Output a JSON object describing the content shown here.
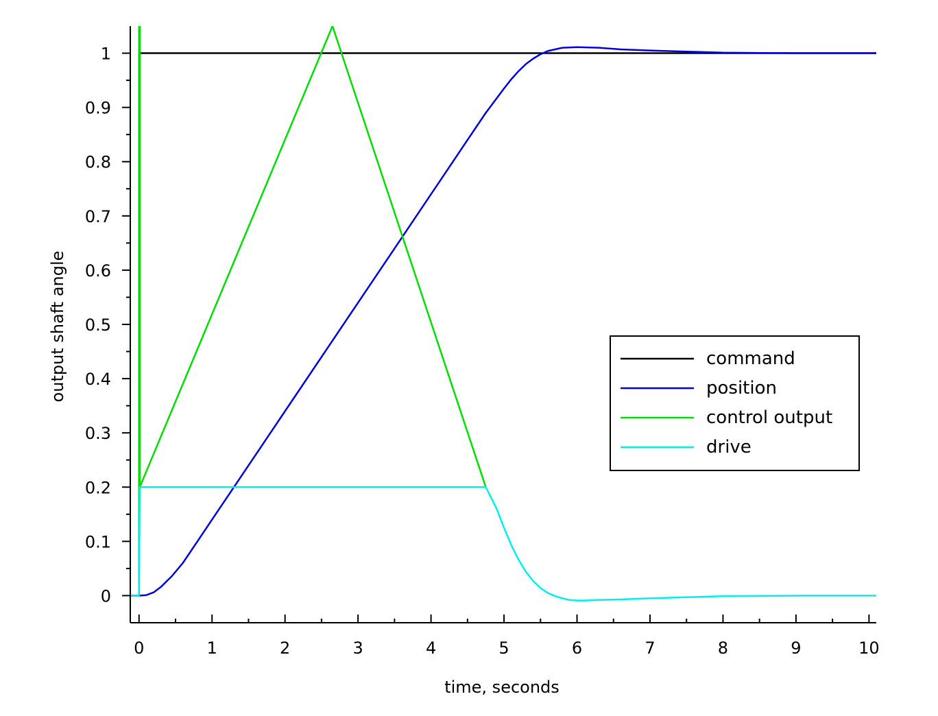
{
  "chart_data": {
    "type": "line",
    "title": "",
    "xlabel": "time, seconds",
    "ylabel": "output shaft angle",
    "xlim": [
      -0.12,
      10.1
    ],
    "ylim": [
      -0.05,
      1.05
    ],
    "xticks": [
      0,
      1,
      2,
      3,
      4,
      5,
      6,
      7,
      8,
      9,
      10
    ],
    "yticks": [
      0,
      0.1,
      0.2,
      0.3,
      0.4,
      0.5,
      0.6,
      0.7,
      0.8,
      0.9,
      1
    ],
    "xtick_labels": [
      "0",
      "1",
      "2",
      "3",
      "4",
      "5",
      "6",
      "7",
      "8",
      "9",
      "10"
    ],
    "ytick_labels": [
      "0",
      "0.1",
      "0.2",
      "0.3",
      "0.4",
      "0.5",
      "0.6",
      "0.7",
      "0.8",
      "0.9",
      "1"
    ],
    "grid": false,
    "legend_position": "center-right",
    "series": [
      {
        "name": "command",
        "color": "#000000",
        "x": [
          -0.12,
          0,
          0,
          10.1
        ],
        "y": [
          0,
          0,
          1,
          1
        ]
      },
      {
        "name": "position",
        "color": "#0000dd",
        "x": [
          0,
          0.1,
          0.2,
          0.3,
          0.45,
          0.6,
          0.8,
          1.0,
          1.5,
          2.0,
          2.5,
          3.0,
          3.5,
          4.0,
          4.5,
          4.75,
          4.9,
          5.0,
          5.1,
          5.2,
          5.3,
          5.4,
          5.5,
          5.6,
          5.8,
          6.0,
          6.3,
          6.6,
          7.0,
          7.5,
          8.0,
          8.5,
          9.0,
          10.1
        ],
        "y": [
          0,
          0.001,
          0.006,
          0.016,
          0.036,
          0.06,
          0.1,
          0.14,
          0.24,
          0.34,
          0.44,
          0.54,
          0.64,
          0.74,
          0.84,
          0.89,
          0.917,
          0.935,
          0.952,
          0.967,
          0.98,
          0.99,
          0.998,
          1.004,
          1.01,
          1.011,
          1.01,
          1.007,
          1.005,
          1.003,
          1.001,
          1.0005,
          1.0,
          1.0
        ]
      },
      {
        "name": "control output",
        "color": "#00dd00",
        "x": [
          0,
          0,
          0.01,
          0.01,
          2.65,
          4.75
        ],
        "y": [
          0,
          1.05,
          1.05,
          0.2,
          1.05,
          0.2
        ]
      },
      {
        "name": "drive",
        "color": "#00eeee",
        "x": [
          -0.12,
          0,
          0.01,
          4.75,
          4.9,
          5.0,
          5.1,
          5.2,
          5.3,
          5.4,
          5.5,
          5.6,
          5.7,
          5.8,
          5.9,
          6.0,
          6.1,
          6.3,
          6.6,
          7.0,
          7.5,
          8.0,
          9.0,
          10.1
        ],
        "y": [
          0,
          0,
          0.2,
          0.2,
          0.16,
          0.125,
          0.093,
          0.066,
          0.044,
          0.027,
          0.014,
          0.005,
          -0.001,
          -0.005,
          -0.008,
          -0.009,
          -0.009,
          -0.008,
          -0.007,
          -0.005,
          -0.003,
          -0.001,
          0,
          0
        ]
      }
    ]
  }
}
